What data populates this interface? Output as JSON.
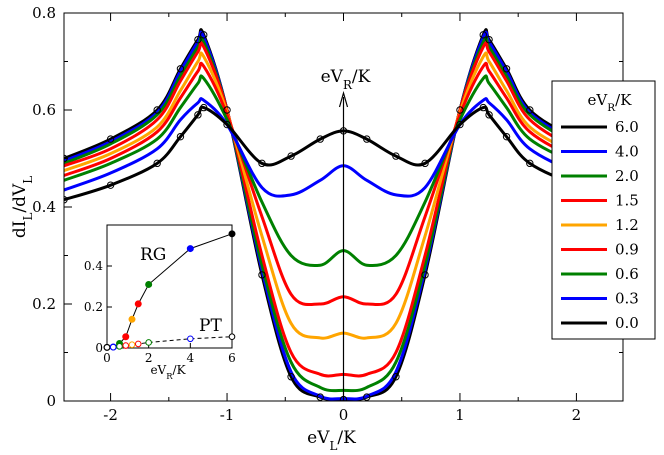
{
  "chart_data": {
    "type": "line",
    "xlabel": "eV_L/K",
    "ylabel": "dI_L/dV_L",
    "xlim": [
      -2.4,
      2.4
    ],
    "ylim": [
      0,
      0.8
    ],
    "xticks": [
      "-2",
      "-1",
      "0",
      "1",
      "2"
    ],
    "yticks": [
      "0",
      "0.2",
      "0.4",
      "0.6",
      "0.8"
    ],
    "center_annotation": "eV_R/K",
    "legend_title": "eV_R/K",
    "legend_position": "right",
    "series": [
      {
        "name": "6.0",
        "color": "#000000",
        "values": [
          0.415,
          0.445,
          0.49,
          0.545,
          0.59,
          0.605,
          0.57,
          0.49,
          0.505,
          0.54,
          0.557
        ]
      },
      {
        "name": "4.0",
        "color": "#0000ff",
        "values": [
          0.435,
          0.47,
          0.52,
          0.58,
          0.615,
          0.62,
          0.57,
          0.44,
          0.425,
          0.455,
          0.485
        ]
      },
      {
        "name": "2.0",
        "color": "#008000",
        "values": [
          0.455,
          0.49,
          0.54,
          0.605,
          0.655,
          0.665,
          0.58,
          0.41,
          0.3,
          0.28,
          0.31
        ]
      },
      {
        "name": "1.5",
        "color": "#ff0000",
        "values": [
          0.465,
          0.5,
          0.555,
          0.625,
          0.68,
          0.69,
          0.59,
          0.38,
          0.22,
          0.2,
          0.215
        ]
      },
      {
        "name": "1.2",
        "color": "#ffa500",
        "values": [
          0.475,
          0.51,
          0.565,
          0.64,
          0.7,
          0.71,
          0.595,
          0.34,
          0.16,
          0.13,
          0.14
        ]
      },
      {
        "name": "0.9",
        "color": "#ff0000",
        "values": [
          0.485,
          0.52,
          0.58,
          0.66,
          0.72,
          0.73,
          0.6,
          0.3,
          0.1,
          0.055,
          0.055
        ]
      },
      {
        "name": "0.6",
        "color": "#008000",
        "values": [
          0.49,
          0.53,
          0.59,
          0.67,
          0.73,
          0.74,
          0.6,
          0.28,
          0.08,
          0.028,
          0.022
        ]
      },
      {
        "name": "0.3",
        "color": "#0000ff",
        "values": [
          0.495,
          0.535,
          0.595,
          0.68,
          0.74,
          0.75,
          0.6,
          0.27,
          0.06,
          0.01,
          0.005
        ]
      },
      {
        "name": "0.0",
        "color": "#000000",
        "values": [
          0.5,
          0.54,
          0.6,
          0.685,
          0.745,
          0.755,
          0.6,
          0.26,
          0.05,
          0.008,
          0.003
        ]
      }
    ],
    "x": [
      -2.4,
      -2.0,
      -1.6,
      -1.4,
      -1.25,
      -1.2,
      -1.0,
      -0.7,
      -0.45,
      -0.2,
      0.0
    ],
    "symmetric_about_zero": true,
    "inset": {
      "xlabel": "eV_R/K",
      "xlim": [
        0,
        6
      ],
      "ylim": [
        0,
        0.6
      ],
      "xticks": [
        "0",
        "2",
        "4",
        "6"
      ],
      "yticks": [
        "0",
        "0.2",
        "0.4"
      ],
      "annotations": [
        "RG",
        "PT"
      ],
      "series": [
        {
          "name": "RG",
          "style": "solid",
          "points": [
            [
              0.0,
              0.003
            ],
            [
              0.3,
              0.005
            ],
            [
              0.6,
              0.022
            ],
            [
              0.9,
              0.055
            ],
            [
              1.2,
              0.14
            ],
            [
              1.5,
              0.215
            ],
            [
              2.0,
              0.31
            ],
            [
              4.0,
              0.485
            ],
            [
              6.0,
              0.557
            ]
          ]
        },
        {
          "name": "PT",
          "style": "dashed",
          "points": [
            [
              0.0,
              0.003
            ],
            [
              0.3,
              0.004
            ],
            [
              0.6,
              0.008
            ],
            [
              0.9,
              0.012
            ],
            [
              1.2,
              0.016
            ],
            [
              1.5,
              0.02
            ],
            [
              2.0,
              0.027
            ],
            [
              4.0,
              0.045
            ],
            [
              6.0,
              0.055
            ]
          ]
        }
      ]
    }
  }
}
